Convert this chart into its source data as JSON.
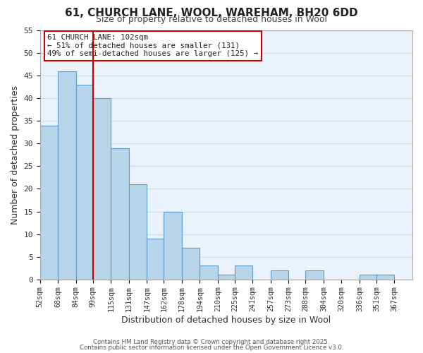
{
  "title": "61, CHURCH LANE, WOOL, WAREHAM, BH20 6DD",
  "subtitle": "Size of property relative to detached houses in Wool",
  "xlabel": "Distribution of detached houses by size in Wool",
  "ylabel": "Number of detached properties",
  "bar_left_edges": [
    52,
    68,
    84,
    99,
    115,
    131,
    147,
    162,
    178,
    194,
    210,
    225,
    241,
    257,
    273,
    288,
    304,
    320,
    336,
    351
  ],
  "bar_heights": [
    34,
    46,
    43,
    40,
    29,
    21,
    9,
    15,
    7,
    3,
    1,
    3,
    0,
    2,
    0,
    2,
    0,
    0,
    1,
    1
  ],
  "bar_widths": [
    16,
    16,
    15,
    16,
    16,
    16,
    15,
    16,
    16,
    16,
    15,
    16,
    16,
    16,
    15,
    16,
    16,
    16,
    15,
    16
  ],
  "tick_labels": [
    "52sqm",
    "68sqm",
    "84sqm",
    "99sqm",
    "115sqm",
    "131sqm",
    "147sqm",
    "162sqm",
    "178sqm",
    "194sqm",
    "210sqm",
    "225sqm",
    "241sqm",
    "257sqm",
    "273sqm",
    "288sqm",
    "304sqm",
    "320sqm",
    "336sqm",
    "351sqm",
    "367sqm"
  ],
  "tick_positions": [
    52,
    68,
    84,
    99,
    115,
    131,
    147,
    162,
    178,
    194,
    210,
    225,
    241,
    257,
    273,
    288,
    304,
    320,
    336,
    351,
    367
  ],
  "bar_color": "#b8d4e8",
  "bar_edge_color": "#5b9bd5",
  "grid_color": "#c8daea",
  "bg_color": "#eaf3fb",
  "vline_x": 99,
  "vline_color": "#cc0000",
  "annotation_text": "61 CHURCH LANE: 102sqm\n← 51% of detached houses are smaller (131)\n49% of semi-detached houses are larger (125) →",
  "annotation_box_color": "#ffffff",
  "annotation_box_edge": "#cc0000",
  "ylim": [
    0,
    55
  ],
  "yticks": [
    0,
    5,
    10,
    15,
    20,
    25,
    30,
    35,
    40,
    45,
    50,
    55
  ],
  "xmin": 52,
  "xmax": 383,
  "footer1": "Contains HM Land Registry data © Crown copyright and database right 2025.",
  "footer2": "Contains public sector information licensed under the Open Government Licence v3.0."
}
